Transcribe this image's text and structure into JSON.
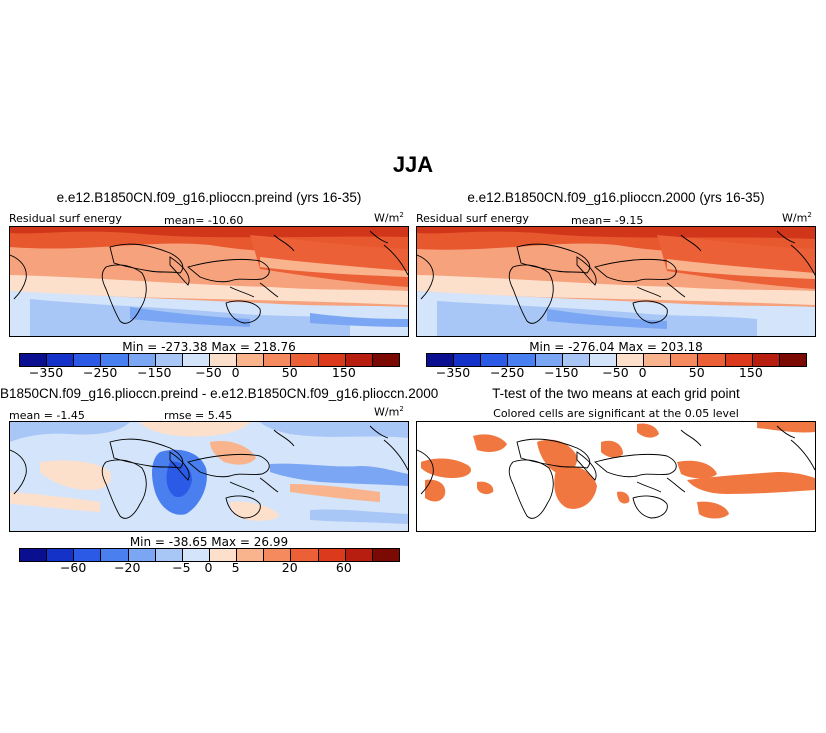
{
  "main_title": "JJA",
  "panels": {
    "top_left": {
      "title": "e.e12.B1850CN.f09_g16.plioccn.preind (yrs 16-35)",
      "left_label": "Residual surf energy",
      "center_label": "mean= -10.60",
      "units": "W/m",
      "units_sup": "2",
      "minmax": "Min = -273.38  Max = 218.76"
    },
    "top_right": {
      "title": "e.e12.B1850CN.f09_g16.plioccn.2000 (yrs 16-35)",
      "left_label": "Residual surf energy",
      "center_label": "mean=  -9.15",
      "units": "W/m",
      "units_sup": "2",
      "minmax": "Min = -276.04  Max = 203.18"
    },
    "bottom_left": {
      "title": "B1850CN.f09_g16.plioccn.preind - e.e12.B1850CN.f09_g16.plioccn.2000",
      "left_label": "mean =  -1.45",
      "center_label": "rmse =   5.45",
      "units": "W/m",
      "units_sup": "2",
      "minmax": "Min = -38.65  Max = 26.99"
    },
    "bottom_right": {
      "title": "T-test of the two means at each grid point",
      "subtitle": "Colored cells are significant at the 0.05 level"
    }
  },
  "colorbars": {
    "abs": {
      "colors": [
        "#0a0f8f",
        "#1432c8",
        "#2a5ae6",
        "#4a7ff0",
        "#7aa6f3",
        "#a8c6f6",
        "#d4e4fa",
        "#fde0cc",
        "#f9b48e",
        "#f48a5e",
        "#ec6038",
        "#dc3a1c",
        "#b81e10",
        "#7c0a04"
      ],
      "ticks": [
        "-350",
        "-250",
        "-150",
        "-50",
        "0",
        "50",
        "150"
      ],
      "tick_positions": [
        1,
        3,
        5,
        7,
        8,
        10,
        12
      ]
    },
    "diff": {
      "colors": [
        "#0a0f8f",
        "#1432c8",
        "#2a5ae6",
        "#4a7ff0",
        "#7aa6f3",
        "#a8c6f6",
        "#d4e4fa",
        "#fde0cc",
        "#f9b48e",
        "#f48a5e",
        "#ec6038",
        "#dc3a1c",
        "#b81e10",
        "#7c0a04"
      ],
      "ticks": [
        "-60",
        "-20",
        "-5",
        "0",
        "5",
        "20",
        "60"
      ],
      "tick_positions": [
        2,
        4,
        6,
        7,
        8,
        10,
        12
      ]
    }
  },
  "colors": {
    "significance": "#f07840",
    "coast": "#000000"
  }
}
